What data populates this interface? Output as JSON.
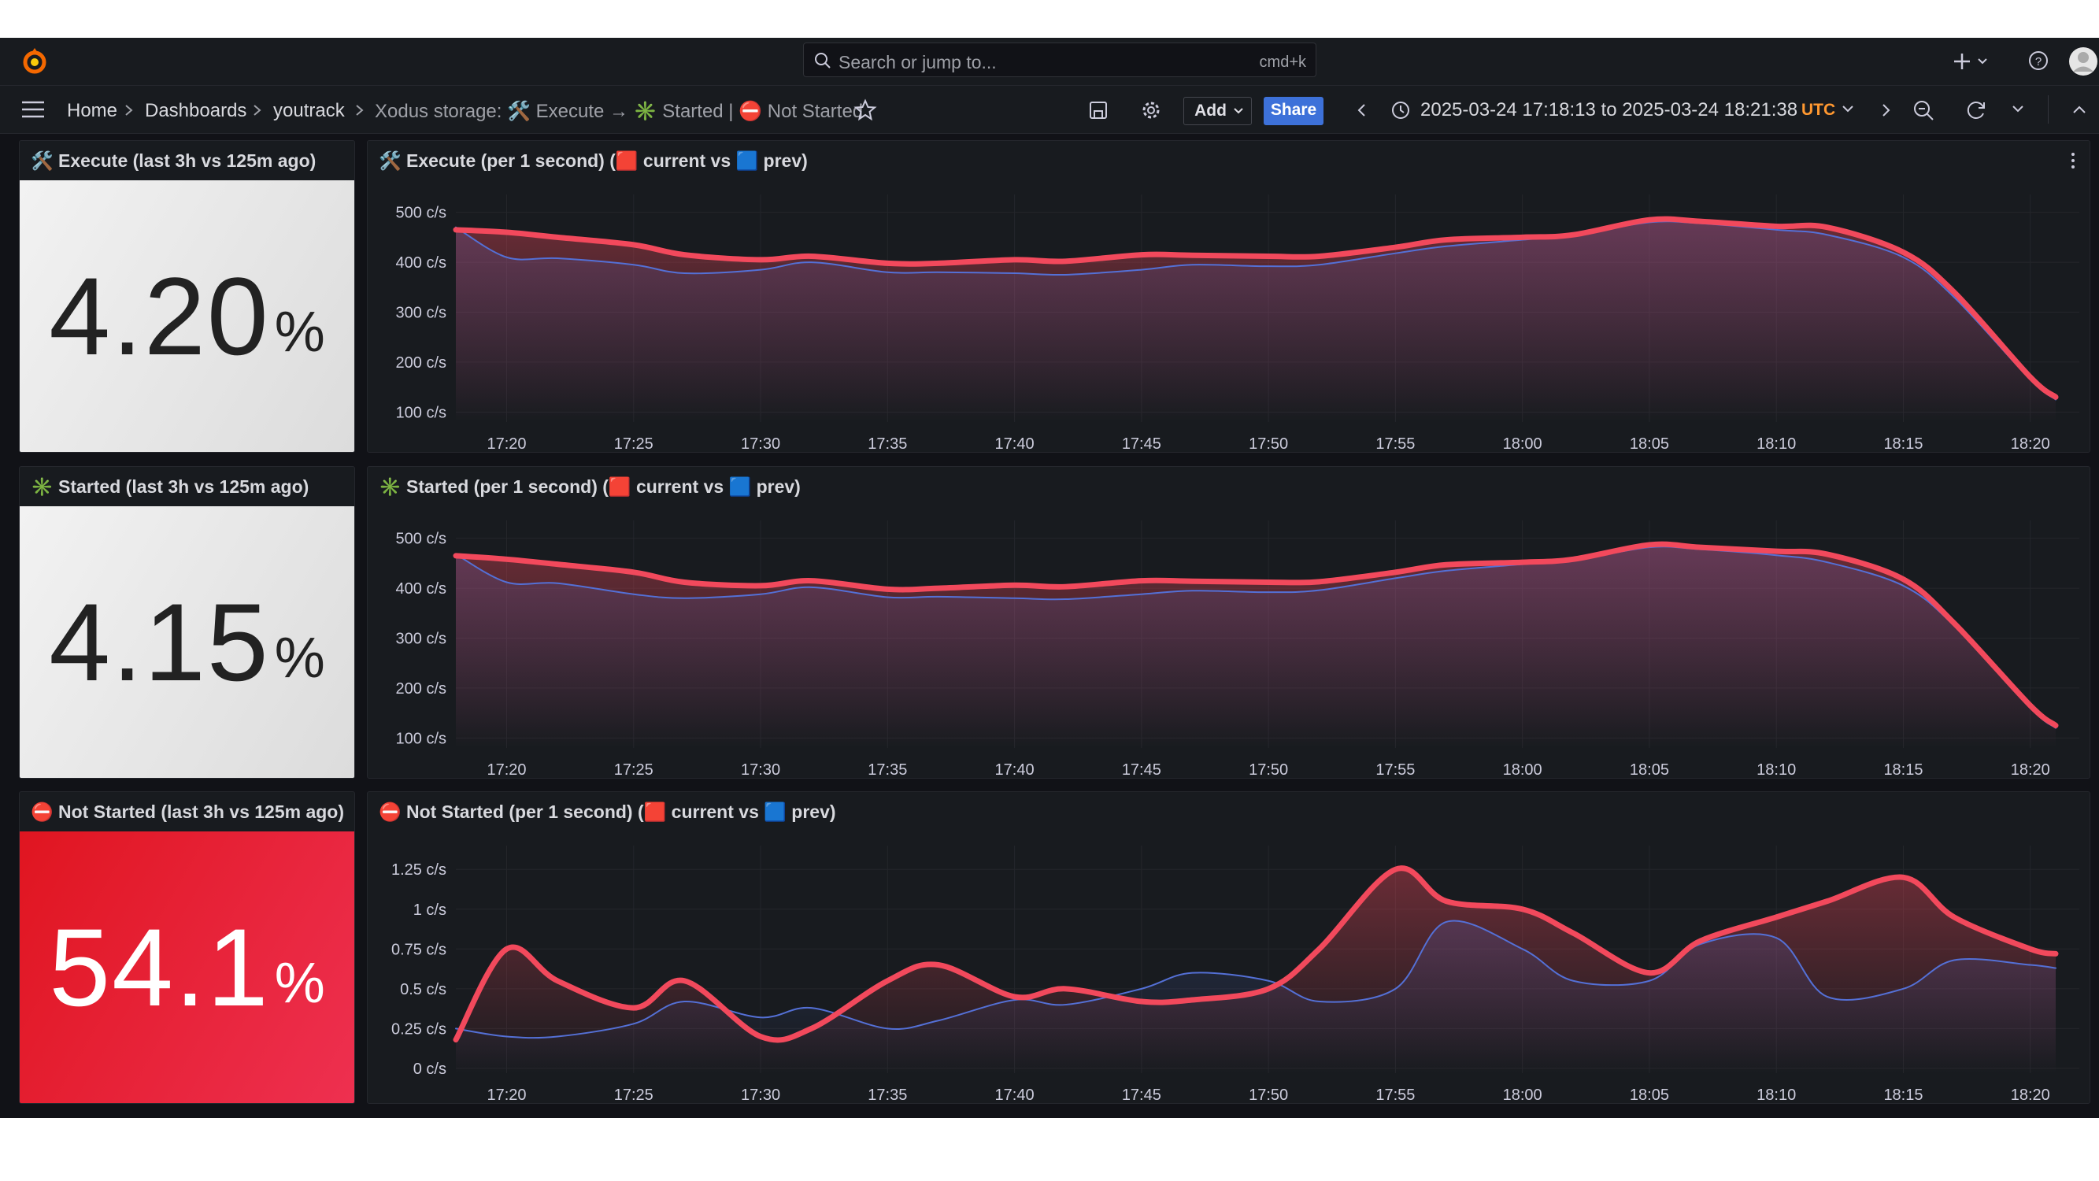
{
  "topbar": {
    "search_placeholder": "Search or jump to...",
    "shortcut": "cmd+k"
  },
  "breadcrumbs": [
    "Home",
    "Dashboards",
    "youtrack",
    "Xodus storage: 🛠️ Execute → ✳️ Started | ⛔ Not Started"
  ],
  "toolbar": {
    "add": "Add",
    "share": "Share",
    "time_range": "2025-03-24 17:18:13 to 2025-03-24 18:21:38",
    "timezone": "UTC"
  },
  "stat_panels": [
    {
      "title": "🛠️ Execute (last 3h vs 125m ago)",
      "value": "4.20",
      "unit": "%"
    },
    {
      "title": "✳️ Started (last 3h vs 125m ago)",
      "value": "4.15",
      "unit": "%"
    },
    {
      "title": "⛔ Not Started (last 3h vs 125m ago)",
      "value": "54.1",
      "unit": "%"
    }
  ],
  "chart_data": [
    {
      "type": "line",
      "title": "🛠️ Execute (per 1 second) (🟥 current vs 🟦 prev)",
      "grid": true,
      "x": [
        "17:18",
        "17:20",
        "17:22",
        "17:25",
        "17:27",
        "17:30",
        "17:32",
        "17:35",
        "17:37",
        "17:40",
        "17:42",
        "17:45",
        "17:47",
        "17:50",
        "17:52",
        "17:55",
        "17:57",
        "18:00",
        "18:02",
        "18:05",
        "18:07",
        "18:10",
        "18:12",
        "18:15",
        "18:17",
        "18:20",
        "18:21"
      ],
      "xlim": [
        "17:18",
        "18:21"
      ],
      "xticks": [
        "17:20",
        "17:25",
        "17:30",
        "17:35",
        "17:40",
        "17:45",
        "17:50",
        "17:55",
        "18:00",
        "18:05",
        "18:10",
        "18:15",
        "18:20"
      ],
      "ylim": [
        80,
        520
      ],
      "yticks": [
        {
          "value": 100,
          "label": "100 c/s"
        },
        {
          "value": 200,
          "label": "200 c/s"
        },
        {
          "value": 300,
          "label": "300 c/s"
        },
        {
          "value": 400,
          "label": "400 c/s"
        },
        {
          "value": 500,
          "label": "500 c/s"
        }
      ],
      "series": [
        {
          "color": "#f2495c",
          "values": [
            465,
            460,
            450,
            435,
            415,
            405,
            412,
            398,
            398,
            405,
            402,
            415,
            414,
            412,
            412,
            430,
            445,
            450,
            455,
            485,
            482,
            472,
            470,
            420,
            340,
            170,
            130
          ]
        },
        {
          "color": "#5470d6",
          "values": [
            470,
            410,
            408,
            395,
            378,
            385,
            400,
            380,
            380,
            378,
            375,
            385,
            395,
            392,
            395,
            418,
            432,
            445,
            455,
            480,
            478,
            465,
            455,
            410,
            330,
            165,
            125
          ]
        }
      ]
    },
    {
      "type": "line",
      "title": "✳️ Started (per 1 second) (🟥 current vs 🟦 prev)",
      "grid": true,
      "x": [
        "17:18",
        "17:20",
        "17:22",
        "17:25",
        "17:27",
        "17:30",
        "17:32",
        "17:35",
        "17:37",
        "17:40",
        "17:42",
        "17:45",
        "17:47",
        "17:50",
        "17:52",
        "17:55",
        "17:57",
        "18:00",
        "18:02",
        "18:05",
        "18:07",
        "18:10",
        "18:12",
        "18:15",
        "18:17",
        "18:20",
        "18:21"
      ],
      "xlim": [
        "17:18",
        "18:21"
      ],
      "xticks": [
        "17:20",
        "17:25",
        "17:30",
        "17:35",
        "17:40",
        "17:45",
        "17:50",
        "17:55",
        "18:00",
        "18:05",
        "18:10",
        "18:15",
        "18:20"
      ],
      "ylim": [
        80,
        520
      ],
      "yticks": [
        {
          "value": 100,
          "label": "100 c/s"
        },
        {
          "value": 200,
          "label": "200 c/s"
        },
        {
          "value": 300,
          "label": "300 c/s"
        },
        {
          "value": 400,
          "label": "400 c/s"
        },
        {
          "value": 500,
          "label": "500 c/s"
        }
      ],
      "series": [
        {
          "color": "#f2495c",
          "values": [
            465,
            458,
            448,
            432,
            412,
            405,
            415,
            398,
            400,
            406,
            403,
            415,
            414,
            412,
            413,
            432,
            447,
            452,
            458,
            487,
            482,
            474,
            468,
            418,
            330,
            165,
            125
          ]
        },
        {
          "color": "#5470d6",
          "values": [
            468,
            412,
            410,
            388,
            380,
            388,
            402,
            382,
            383,
            380,
            378,
            388,
            395,
            392,
            396,
            420,
            435,
            448,
            456,
            482,
            478,
            466,
            452,
            405,
            325,
            160,
            120
          ]
        }
      ]
    },
    {
      "type": "line",
      "title": "⛔ Not Started (per 1 second) (🟥 current vs 🟦 prev)",
      "grid": true,
      "x": [
        "17:18",
        "17:20",
        "17:22",
        "17:25",
        "17:27",
        "17:30",
        "17:32",
        "17:35",
        "17:37",
        "17:40",
        "17:42",
        "17:45",
        "17:47",
        "17:50",
        "17:52",
        "17:55",
        "17:57",
        "18:00",
        "18:02",
        "18:05",
        "18:07",
        "18:10",
        "18:12",
        "18:15",
        "18:17",
        "18:20",
        "18:21"
      ],
      "xlim": [
        "17:18",
        "18:21"
      ],
      "xticks": [
        "17:20",
        "17:25",
        "17:30",
        "17:35",
        "17:40",
        "17:45",
        "17:50",
        "17:55",
        "18:00",
        "18:05",
        "18:10",
        "18:15",
        "18:20"
      ],
      "ylim": [
        -0.03,
        1.35
      ],
      "yticks": [
        {
          "value": 0,
          "label": "0 c/s"
        },
        {
          "value": 0.25,
          "label": "0.25 c/s"
        },
        {
          "value": 0.5,
          "label": "0.5 c/s"
        },
        {
          "value": 0.75,
          "label": "0.75 c/s"
        },
        {
          "value": 1,
          "label": "1 c/s"
        },
        {
          "value": 1.25,
          "label": "1.25 c/s"
        }
      ],
      "series": [
        {
          "color": "#f2495c",
          "values": [
            0.18,
            0.75,
            0.55,
            0.38,
            0.55,
            0.2,
            0.25,
            0.55,
            0.65,
            0.45,
            0.5,
            0.42,
            0.43,
            0.5,
            0.75,
            1.25,
            1.05,
            1.0,
            0.85,
            0.6,
            0.8,
            0.95,
            1.05,
            1.2,
            0.95,
            0.75,
            0.72
          ]
        },
        {
          "color": "#5470d6",
          "values": [
            0.25,
            0.2,
            0.2,
            0.28,
            0.42,
            0.32,
            0.38,
            0.25,
            0.3,
            0.43,
            0.4,
            0.5,
            0.6,
            0.55,
            0.42,
            0.5,
            0.92,
            0.75,
            0.55,
            0.55,
            0.78,
            0.82,
            0.45,
            0.5,
            0.68,
            0.65,
            0.63
          ]
        }
      ]
    }
  ]
}
